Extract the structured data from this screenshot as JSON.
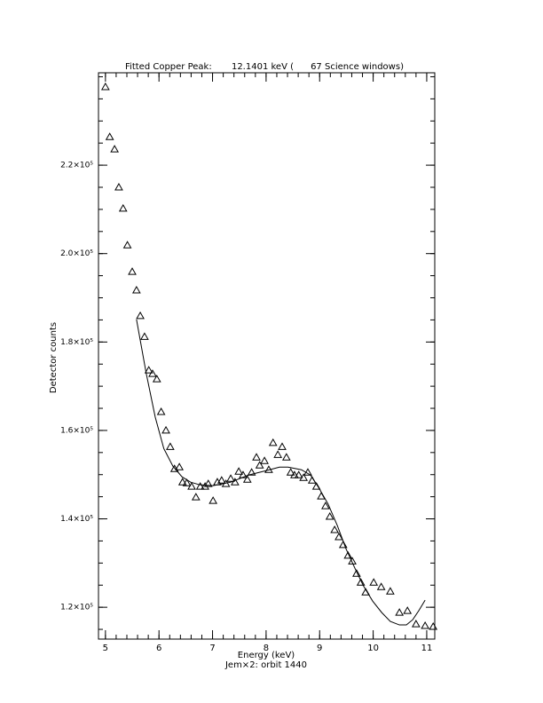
{
  "chart_data": {
    "type": "scatter",
    "title": "Fitted Copper Peak:       12.1401 keV (      67 Science windows)",
    "xlabel": "Energy (keV)",
    "subtitle": "Jem×2: orbit 1440",
    "ylabel": "Detector counts",
    "xlim": [
      4.87,
      11.15
    ],
    "ylim": [
      112800,
      240900
    ],
    "xticks": [
      5,
      6,
      7,
      8,
      9,
      10,
      11
    ],
    "yticks": [
      {
        "value": 120000,
        "label": "1.2×10⁵"
      },
      {
        "value": 140000,
        "label": "1.4×10⁵"
      },
      {
        "value": 160000,
        "label": "1.6×10⁵"
      },
      {
        "value": 180000,
        "label": "1.8×10⁵"
      },
      {
        "value": 200000,
        "label": "2.0×10⁵"
      },
      {
        "value": 220000,
        "label": "2.2×10⁵"
      }
    ],
    "xminor": 5,
    "yminor": 4,
    "series": [
      {
        "type": "scatter",
        "marker": "triangle",
        "color": "#000000",
        "x": [
          5.0,
          5.08,
          5.17,
          5.25,
          5.33,
          5.41,
          5.5,
          5.58,
          5.65,
          5.73,
          5.81,
          5.88,
          5.96,
          6.04,
          6.13,
          6.21,
          6.29,
          6.38,
          6.44,
          6.52,
          6.61,
          6.69,
          6.77,
          6.86,
          6.92,
          7.01,
          7.09,
          7.17,
          7.25,
          7.34,
          7.42,
          7.49,
          7.57,
          7.65,
          7.73,
          7.82,
          7.88,
          7.97,
          8.05,
          8.13,
          8.22,
          8.3,
          8.38,
          8.46,
          8.53,
          8.61,
          8.7,
          8.78,
          8.86,
          8.94,
          9.03,
          9.11,
          9.19,
          9.28,
          9.36,
          9.44,
          9.53,
          9.61,
          9.69,
          9.77,
          9.86,
          10.01,
          10.15,
          10.32,
          10.49,
          10.64,
          10.8,
          10.97,
          11.12
        ],
        "values": [
          237700,
          226400,
          223600,
          215000,
          210200,
          201900,
          195900,
          191700,
          185900,
          181200,
          173600,
          172800,
          171600,
          164200,
          160000,
          156300,
          151300,
          151700,
          148300,
          148100,
          147300,
          144900,
          147300,
          147300,
          147900,
          144100,
          148300,
          148700,
          147900,
          149100,
          148300,
          150700,
          149900,
          148900,
          150500,
          153900,
          152100,
          153100,
          151100,
          157200,
          154500,
          156300,
          153900,
          150500,
          149900,
          149900,
          149300,
          150500,
          148700,
          147300,
          145100,
          142900,
          140500,
          137500,
          135900,
          134100,
          131700,
          130400,
          127600,
          125600,
          123400,
          125600,
          124600,
          123600,
          118800,
          119200,
          116200,
          115800,
          115600
        ]
      },
      {
        "type": "line",
        "color": "#000000",
        "x": [
          5.58,
          5.76,
          5.93,
          6.09,
          6.26,
          6.43,
          6.59,
          6.76,
          7.01,
          7.34,
          7.67,
          8.0,
          8.25,
          8.41,
          8.66,
          8.83,
          8.99,
          9.16,
          9.33,
          9.49,
          9.66,
          9.82,
          9.99,
          10.16,
          10.32,
          10.49,
          10.62,
          10.74,
          10.85,
          10.97
        ],
        "values": [
          185100,
          173000,
          163000,
          155900,
          151900,
          149500,
          148300,
          147700,
          147500,
          148300,
          149900,
          150900,
          151700,
          151700,
          151100,
          149900,
          146900,
          143300,
          138500,
          133300,
          128800,
          124800,
          121400,
          118800,
          116800,
          116000,
          116000,
          117200,
          119200,
          121600
        ]
      }
    ]
  }
}
